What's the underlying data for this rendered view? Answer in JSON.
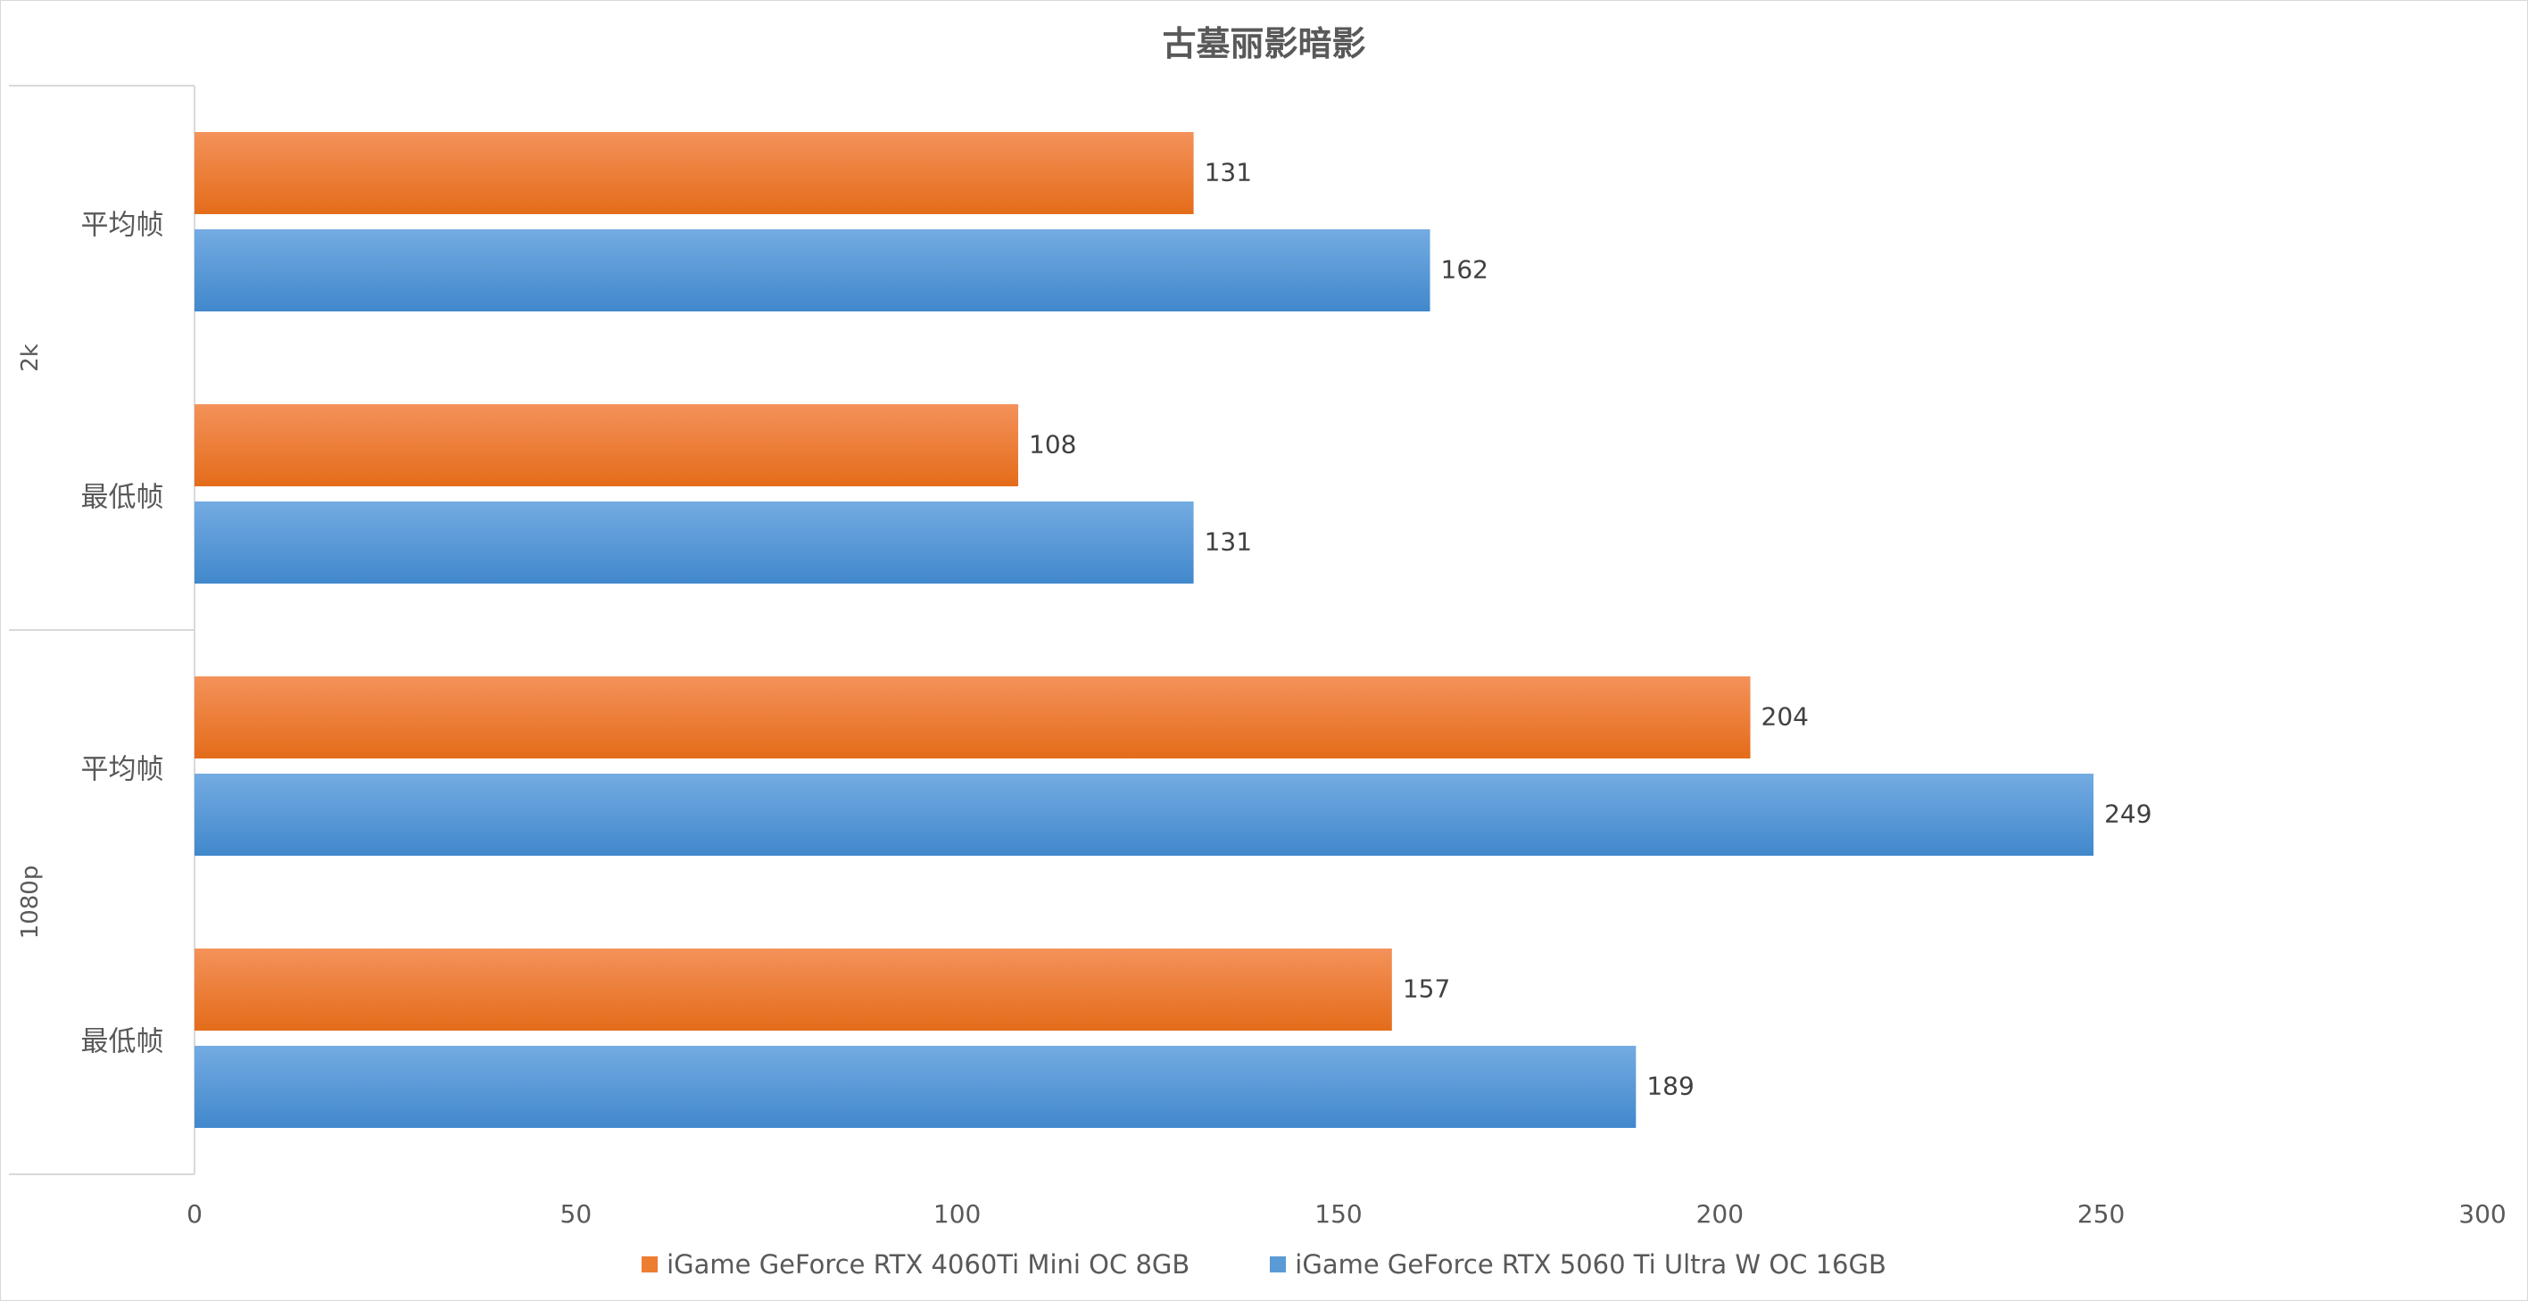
{
  "chart_data": {
    "type": "bar",
    "orientation": "horizontal",
    "title": "古墓丽影暗影",
    "groups": [
      {
        "label": "2k",
        "categories": [
          "平均帧",
          "最低帧"
        ]
      },
      {
        "label": "1080p",
        "categories": [
          "平均帧",
          "最低帧"
        ]
      }
    ],
    "series": [
      {
        "name": "iGame GeForce RTX 4060Ti Mini OC 8GB",
        "color": "#ed7d31",
        "values": [
          131,
          108,
          204,
          157
        ]
      },
      {
        "name": "iGame GeForce RTX 5060 Ti Ultra W OC 16GB",
        "color": "#5b9bd5",
        "values": [
          162,
          131,
          249,
          189
        ]
      }
    ],
    "xlim": [
      0,
      300
    ],
    "xticks": [
      0,
      50,
      100,
      150,
      200,
      250,
      300
    ],
    "grid": false,
    "legend": "bottom"
  }
}
